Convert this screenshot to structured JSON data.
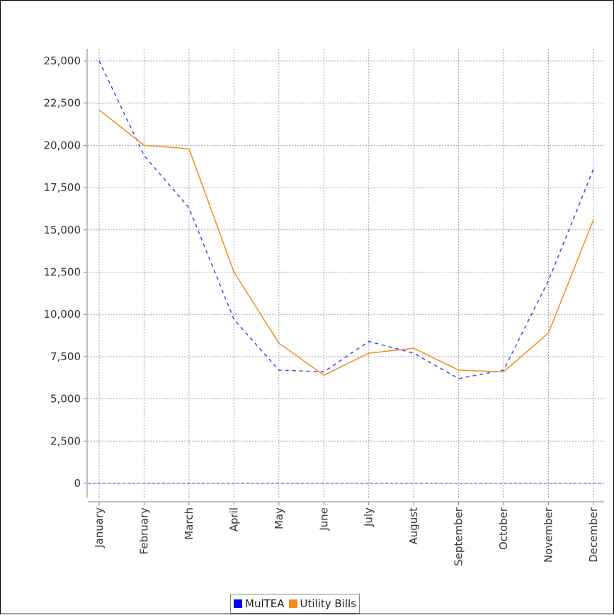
{
  "chart_data": {
    "type": "line",
    "title": "",
    "xlabel": "",
    "ylabel": "",
    "categories": [
      "January",
      "February",
      "March",
      "April",
      "May",
      "June",
      "July",
      "August",
      "September",
      "October",
      "November",
      "December"
    ],
    "ylim": [
      0,
      25000
    ],
    "yticks": [
      0,
      2500,
      5000,
      7500,
      10000,
      12500,
      15000,
      17500,
      20000,
      22500,
      25000
    ],
    "ytick_labels": [
      "0",
      "2,500",
      "5,000",
      "7,500",
      "10,000",
      "12,500",
      "15,000",
      "17,500",
      "20,000",
      "22,500",
      "25,000"
    ],
    "grid": true,
    "legend_position": "bottom",
    "series": [
      {
        "name": "MulTEA",
        "color": "#0000ff",
        "line_style": "dashed",
        "values": [
          25000,
          19400,
          16300,
          9700,
          6700,
          6600,
          8400,
          7700,
          6200,
          6700,
          12000,
          18600
        ]
      },
      {
        "name": "Utility Bills",
        "color": "#f28c1c",
        "line_style": "solid",
        "values": [
          22100,
          20000,
          19800,
          12500,
          8300,
          6400,
          7700,
          8000,
          6700,
          6600,
          8900,
          15600
        ]
      }
    ],
    "baseline": {
      "value": 0,
      "color": "#0000ff",
      "line_style": "dashed"
    }
  }
}
